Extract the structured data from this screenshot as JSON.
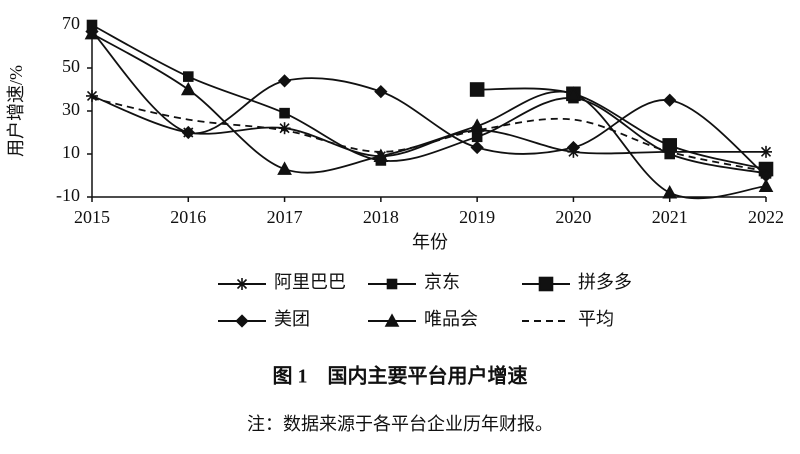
{
  "chart_data": {
    "type": "line",
    "caption": "图 1　国内主要平台用户增速",
    "note": "注：数据来源于各平台企业历年财报。",
    "x_label": "年份",
    "y_label": "用户增速/%",
    "categories": [
      "2015",
      "2016",
      "2017",
      "2018",
      "2019",
      "2020",
      "2021",
      "2022"
    ],
    "ylim": [
      -10,
      70
    ],
    "yticks": [
      -10,
      10,
      30,
      50,
      70
    ],
    "series": [
      {
        "name": "阿里巴巴",
        "color": "#111111",
        "marker": "asterisk",
        "values": [
          37,
          20,
          22,
          9,
          21,
          11,
          11,
          11
        ]
      },
      {
        "name": "京东",
        "color": "#111111",
        "marker": "square",
        "values": [
          70,
          46,
          29,
          7,
          18,
          36,
          10,
          1
        ]
      },
      {
        "name": "拼多多",
        "color": "#111111",
        "marker": "big-square",
        "values": [
          null,
          null,
          null,
          null,
          40,
          38,
          14,
          3
        ]
      },
      {
        "name": "美团",
        "color": "#111111",
        "marker": "diamond",
        "values": [
          67,
          20,
          44,
          39,
          13,
          13,
          35,
          0
        ]
      },
      {
        "name": "唯品会",
        "color": "#111111",
        "marker": "triangle",
        "values": [
          66,
          40,
          3,
          9,
          23,
          38,
          -8,
          -5
        ]
      },
      {
        "name": "平均",
        "color": "#111111",
        "marker": "none",
        "dash": true,
        "values": [
          36,
          26,
          21,
          11,
          21,
          26,
          11,
          2
        ]
      }
    ]
  }
}
